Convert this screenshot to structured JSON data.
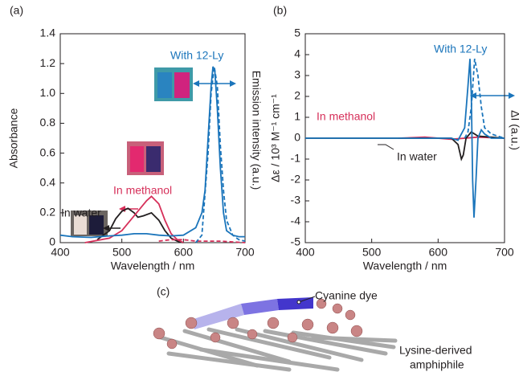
{
  "chart_data": [
    {
      "type": "line",
      "panel": "(a)",
      "xlabel": "Wavelength / nm",
      "ylabel": "Absorbance",
      "y2label": "Emission intensity (a.u.)",
      "xlim": [
        400,
        700
      ],
      "xticks": [
        400,
        500,
        600,
        700
      ],
      "ylim": [
        0,
        1.4
      ],
      "yticks": [
        0,
        0.2,
        0.4,
        0.6,
        0.8,
        {
          "value": 1,
          "label": "1.0"
        },
        1.2,
        1.4
      ],
      "series": [
        {
          "name": "In water",
          "color": "#231f20",
          "dashed": false,
          "x": [
            460,
            480,
            490,
            500,
            510,
            520,
            526,
            535,
            548,
            560,
            570,
            580,
            590,
            600
          ],
          "values": [
            0.02,
            0.08,
            0.16,
            0.21,
            0.23,
            0.2,
            0.17,
            0.18,
            0.2,
            0.15,
            0.08,
            0.03,
            0.01,
            0
          ]
        },
        {
          "name": "In methanol",
          "color": "#d6305a",
          "dashed": false,
          "x": [
            440,
            480,
            500,
            520,
            540,
            548,
            560,
            570,
            580,
            590,
            600
          ],
          "values": [
            0,
            0.03,
            0.08,
            0.18,
            0.28,
            0.31,
            0.26,
            0.15,
            0.06,
            0.02,
            0
          ]
        },
        {
          "color": "#d6305a",
          "dashed": true,
          "x": [
            560,
            580,
            600,
            620,
            640,
            660,
            700
          ],
          "values": [
            0.01,
            0.02,
            0.02,
            0.01,
            0.01,
            0.01,
            0
          ]
        },
        {
          "name": "With 12-Ly",
          "color": "#1b75bb",
          "dashed": false,
          "x": [
            400,
            420,
            450,
            480,
            500,
            520,
            540,
            560,
            580,
            600,
            620,
            630,
            635,
            640,
            645,
            648,
            651,
            655,
            660,
            665,
            670,
            680,
            690,
            700
          ],
          "values": [
            0.05,
            0.04,
            0.035,
            0.045,
            0.05,
            0.06,
            0.06,
            0.05,
            0.045,
            0.05,
            0.1,
            0.2,
            0.35,
            0.7,
            1.05,
            1.18,
            1.15,
            0.9,
            0.5,
            0.2,
            0.08,
            0.05,
            0.04,
            0.04
          ]
        },
        {
          "color": "#1b75bb",
          "dashed": true,
          "x": [
            620,
            630,
            640,
            645,
            650,
            655,
            660,
            665,
            670,
            680,
            690,
            700
          ],
          "values": [
            0,
            0.05,
            0.6,
            1.0,
            1.18,
            1.05,
            0.65,
            0.35,
            0.15,
            0.05,
            0.02,
            0.01
          ]
        }
      ]
    },
    {
      "type": "line",
      "panel": "(b)",
      "xlabel": "Wavelength / nm",
      "ylabel": "Δε / 10³ M⁻¹ cm⁻¹",
      "y2label": "ΔI (a.u.)",
      "xlim": [
        400,
        700
      ],
      "xticks": [
        400,
        500,
        600,
        700
      ],
      "ylim": [
        -5,
        5
      ],
      "yticks": [
        -5,
        -4,
        -3,
        -2,
        -1,
        0,
        1,
        2,
        3,
        4,
        5
      ],
      "series": [
        {
          "name": "In methanol",
          "color": "#d6305a",
          "dashed": false,
          "x": [
            540,
            580,
            620,
            660,
            700
          ],
          "values": [
            0,
            0.05,
            -0.05,
            0.05,
            0
          ]
        },
        {
          "name": "In water",
          "color": "#231f20",
          "dashed": false,
          "x": [
            400,
            600,
            620,
            630,
            635,
            638,
            642,
            650,
            660,
            700
          ],
          "values": [
            0,
            0,
            0,
            -0.3,
            -1.0,
            -0.8,
            0,
            0.3,
            0.1,
            0
          ]
        },
        {
          "name": "With 12-Ly",
          "color": "#1b75bb",
          "dashed": false,
          "x": [
            400,
            620,
            630,
            640,
            645,
            648,
            650,
            652,
            654,
            657,
            660,
            665,
            670,
            680,
            700
          ],
          "values": [
            0,
            0,
            -0.1,
            0.5,
            2.5,
            3.8,
            2,
            -2,
            -3.8,
            -2,
            0,
            0.4,
            0.2,
            0,
            0
          ]
        },
        {
          "color": "#1b75bb",
          "dashed": true,
          "x": [
            640,
            645,
            650,
            655,
            660,
            665,
            670,
            680,
            690,
            700
          ],
          "values": [
            0,
            0.3,
            1.5,
            3.8,
            3,
            1.5,
            0.5,
            0.2,
            0.1,
            0
          ]
        }
      ]
    }
  ],
  "illustration": {
    "label": "(c)",
    "annotations": [
      "Cyanine dye",
      "Lysine-derived",
      "amphiphile"
    ]
  }
}
